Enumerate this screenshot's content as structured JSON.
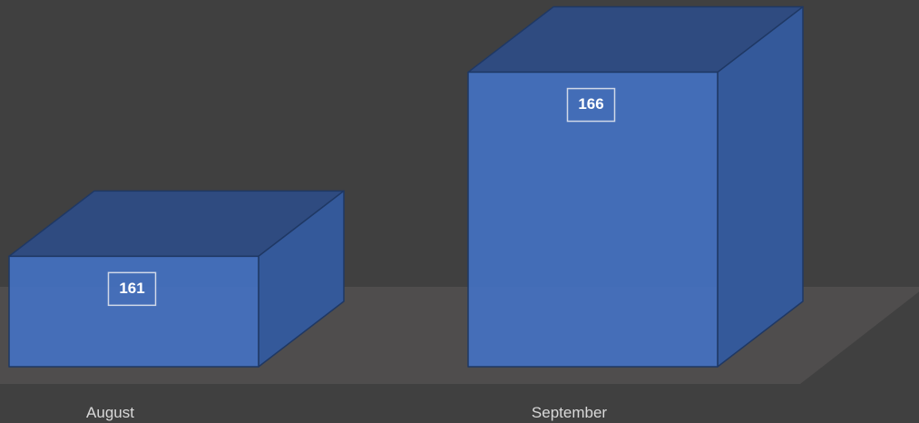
{
  "chart_data": {
    "type": "bar3d",
    "categories": [
      "August",
      "September"
    ],
    "values": [
      161,
      166
    ],
    "color": "#4472c4",
    "ylim": [
      158,
      167
    ]
  }
}
